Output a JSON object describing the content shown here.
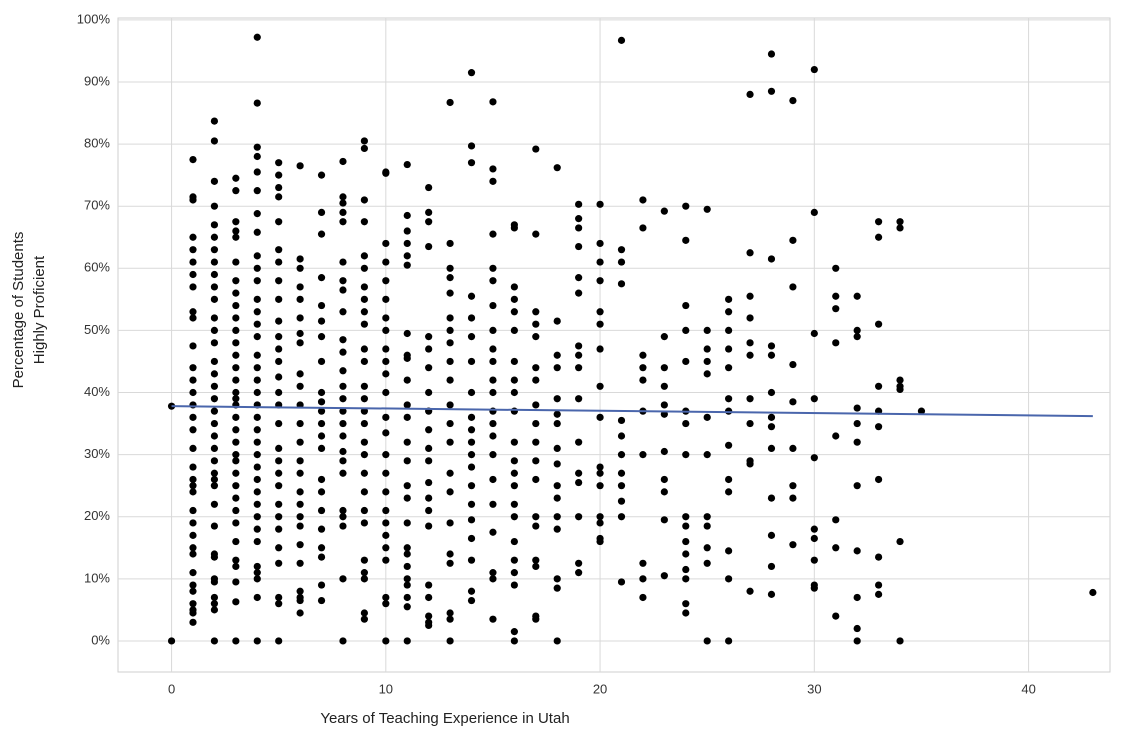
{
  "chart_data": {
    "type": "scatter",
    "x_label": "Years of Teaching Experience in Utah",
    "y_label": [
      "Percentage of Students",
      "Highly Proficient"
    ],
    "color": "#000000",
    "xlim": [
      -2.5,
      43.8
    ],
    "ylim": [
      -5,
      100.3
    ],
    "xticks": [
      0,
      10,
      20,
      30,
      40
    ],
    "yticks": [
      {
        "value": 0,
        "label": "0%"
      },
      {
        "value": 10,
        "label": "10%"
      },
      {
        "value": 20,
        "label": "20%"
      },
      {
        "value": 30,
        "label": "30%"
      },
      {
        "value": 40,
        "label": "40%"
      },
      {
        "value": 50,
        "label": "50%"
      },
      {
        "value": 60,
        "label": "60%"
      },
      {
        "value": 70,
        "label": "70%"
      },
      {
        "value": 80,
        "label": "80%"
      },
      {
        "value": 90,
        "label": "90%"
      },
      {
        "value": 100,
        "label": "100%"
      }
    ],
    "grid": true,
    "trendline": {
      "x": [
        0,
        43
      ],
      "y": [
        37.8,
        36.2
      ],
      "color": "#4a66ac"
    },
    "x": [
      0,
      0,
      1,
      1,
      1,
      1,
      1,
      1,
      1,
      1,
      1,
      1,
      1,
      1,
      1,
      1,
      1,
      1,
      1,
      1,
      1,
      1,
      1,
      1,
      1,
      1,
      1,
      1,
      1,
      1,
      1,
      1,
      1,
      1,
      1,
      1,
      2,
      2,
      2,
      2,
      2,
      2,
      2,
      2,
      2,
      2,
      2,
      2,
      2,
      2,
      2,
      2,
      2,
      2,
      2,
      2,
      2,
      2,
      2,
      2,
      2,
      2,
      2,
      2,
      2,
      2,
      2,
      2,
      2,
      2,
      2,
      2,
      3,
      3,
      3,
      3,
      3,
      3,
      3,
      3,
      3,
      3,
      3,
      3,
      3,
      3,
      3,
      3,
      3,
      3,
      3,
      3,
      3,
      3,
      3,
      3,
      3,
      3,
      3,
      3,
      3,
      3,
      3,
      3,
      3,
      3,
      4,
      4,
      4,
      4,
      4,
      4,
      4,
      4,
      4,
      4,
      4,
      4,
      4,
      4,
      4,
      4,
      4,
      4,
      4,
      4,
      4,
      4,
      4,
      4,
      4,
      4,
      4,
      4,
      4,
      4,
      4,
      4,
      4,
      4,
      4,
      4,
      5,
      5,
      5,
      5,
      5,
      5,
      5,
      5,
      5,
      5,
      5,
      5,
      5,
      5,
      5,
      5,
      5,
      5,
      5,
      5,
      5,
      5,
      5,
      5,
      5,
      5,
      5,
      5,
      5,
      6,
      6,
      6,
      6,
      6,
      6,
      6,
      6,
      6,
      6,
      6,
      6,
      6,
      6,
      6,
      6,
      6,
      6,
      6,
      6,
      6,
      6,
      6,
      6,
      6,
      7,
      7,
      7,
      7,
      7,
      7,
      7,
      7,
      7,
      7,
      7,
      7,
      7,
      7,
      7,
      7,
      7,
      7,
      7,
      7,
      7,
      7,
      8,
      8,
      8,
      8,
      8,
      8,
      8,
      8,
      8,
      8,
      8,
      8,
      8,
      8,
      8,
      8,
      8,
      8,
      8,
      8,
      8,
      8,
      8,
      8,
      8,
      9,
      9,
      9,
      9,
      9,
      9,
      9,
      9,
      9,
      9,
      9,
      9,
      9,
      9,
      9,
      9,
      9,
      9,
      9,
      9,
      9,
      9,
      9,
      9,
      9,
      9,
      9,
      10,
      10,
      10,
      10,
      10,
      10,
      10,
      10,
      10,
      10,
      10,
      10,
      10,
      10,
      10,
      10,
      10,
      10,
      10,
      10,
      10,
      10,
      10,
      10,
      10,
      11,
      11,
      11,
      11,
      11,
      11,
      11,
      11,
      11,
      11,
      11,
      11,
      11,
      11,
      11,
      11,
      11,
      11,
      11,
      11,
      11,
      11,
      11,
      11,
      11,
      12,
      12,
      12,
      12,
      12,
      12,
      12,
      12,
      12,
      12,
      12,
      12,
      12,
      12,
      12,
      12,
      12,
      12,
      12,
      12,
      12,
      13,
      13,
      13,
      13,
      13,
      13,
      13,
      13,
      13,
      13,
      13,
      13,
      13,
      13,
      13,
      13,
      13,
      13,
      13,
      13,
      13,
      14,
      14,
      14,
      14,
      14,
      14,
      14,
      14,
      14,
      14,
      14,
      14,
      14,
      14,
      14,
      14,
      14,
      14,
      14,
      14,
      15,
      15,
      15,
      15,
      15,
      15,
      15,
      15,
      15,
      15,
      15,
      15,
      15,
      15,
      15,
      15,
      15,
      15,
      15,
      15,
      15,
      15,
      16,
      16,
      16,
      16,
      16,
      16,
      16,
      16,
      16,
      16,
      16,
      16,
      16,
      16,
      16,
      16,
      16,
      16,
      16,
      16,
      16,
      16,
      17,
      17,
      17,
      17,
      17,
      17,
      17,
      17,
      17,
      17,
      17,
      17,
      17,
      17,
      17,
      17,
      17,
      17,
      18,
      18,
      18,
      18,
      18,
      18,
      18,
      18,
      18,
      18,
      18,
      18,
      18,
      18,
      18,
      18,
      19,
      19,
      19,
      19,
      19,
      19,
      19,
      19,
      19,
      19,
      19,
      19,
      19,
      19,
      19,
      19,
      20,
      20,
      20,
      20,
      20,
      20,
      20,
      20,
      20,
      20,
      20,
      20,
      20,
      20,
      20,
      20,
      21,
      21,
      21,
      21,
      21,
      21,
      21,
      21,
      21,
      21,
      21,
      21,
      22,
      22,
      22,
      22,
      22,
      22,
      22,
      22,
      22,
      22,
      23,
      23,
      23,
      23,
      23,
      23,
      23,
      23,
      23,
      23,
      23,
      24,
      24,
      24,
      24,
      24,
      24,
      24,
      24,
      24,
      24,
      24,
      24,
      24,
      24,
      24,
      24,
      25,
      25,
      25,
      25,
      25,
      25,
      25,
      25,
      25,
      25,
      25,
      25,
      26,
      26,
      26,
      26,
      26,
      26,
      26,
      26,
      26,
      26,
      26,
      26,
      26,
      27,
      27,
      27,
      27,
      27,
      27,
      27,
      27,
      27,
      27,
      27,
      28,
      28,
      28,
      28,
      28,
      28,
      28,
      28,
      28,
      28,
      28,
      28,
      28,
      29,
      29,
      29,
      29,
      29,
      29,
      29,
      29,
      29,
      30,
      30,
      30,
      30,
      30,
      30,
      30,
      30,
      30,
      30,
      31,
      31,
      31,
      31,
      31,
      31,
      31,
      31,
      32,
      32,
      32,
      32,
      32,
      32,
      32,
      32,
      32,
      32,
      32,
      33,
      33,
      33,
      33,
      33,
      33,
      33,
      33,
      33,
      33,
      34,
      34,
      34,
      34,
      34,
      34,
      34,
      35,
      43
    ],
    "values": [
      0,
      37.8,
      77.5,
      71.5,
      71,
      65,
      63,
      61,
      59,
      57,
      53,
      52,
      47.5,
      44,
      42,
      40,
      38,
      36,
      34,
      31,
      28,
      26,
      25,
      24,
      21,
      19,
      17,
      15,
      14,
      11,
      9,
      8,
      6,
      5,
      4.5,
      3,
      83.7,
      80.5,
      74,
      70,
      67,
      65,
      63,
      61,
      59,
      57,
      55,
      52,
      50,
      48,
      45,
      43,
      41,
      39,
      37,
      35,
      33,
      31,
      29,
      27,
      26,
      25,
      22,
      18.5,
      14,
      13.5,
      10,
      9.5,
      7,
      6,
      5,
      0,
      74.5,
      72.5,
      67.5,
      66,
      65,
      61,
      58,
      56,
      54,
      52,
      50,
      48,
      46,
      44,
      42,
      40,
      39,
      38,
      36,
      34,
      32,
      30,
      29,
      27,
      25,
      23,
      21,
      19,
      16,
      13,
      12,
      9.5,
      6.3,
      0,
      97.2,
      86.6,
      79.5,
      78,
      75.5,
      72.5,
      68.8,
      65.8,
      62,
      60,
      58,
      55,
      53,
      51,
      49,
      46,
      44,
      42,
      40,
      38,
      36,
      34,
      32,
      30,
      28,
      26,
      24,
      22,
      20,
      18,
      16,
      12,
      11,
      10,
      7,
      0,
      77,
      75,
      73,
      71.5,
      67.5,
      63,
      61,
      58,
      55,
      51.5,
      49,
      47,
      45,
      42.5,
      40,
      38,
      35,
      31,
      29,
      27,
      25,
      22,
      20,
      18,
      15,
      12.5,
      7,
      6,
      0,
      76.5,
      61.5,
      60,
      57,
      55,
      52,
      49.5,
      48,
      43,
      41,
      38,
      35,
      32,
      29,
      27,
      24,
      22,
      20,
      18.5,
      15.5,
      12.5,
      8,
      7,
      6.5,
      4.5,
      75,
      69,
      65.5,
      58.5,
      54,
      51.5,
      49,
      45,
      40,
      38.5,
      37,
      35,
      33,
      31,
      26,
      24,
      21,
      18,
      15,
      13.5,
      9,
      6.5,
      77.2,
      71.5,
      70.5,
      69,
      67.5,
      61,
      58,
      56.5,
      53,
      48.5,
      46.5,
      43.5,
      41,
      39,
      37,
      35,
      33,
      30.5,
      29,
      27,
      21,
      20,
      18.5,
      10,
      0,
      80.5,
      79.3,
      71,
      67.5,
      62,
      60,
      57,
      55,
      53,
      51,
      47,
      45,
      41,
      39,
      37,
      35,
      32,
      30,
      27,
      24,
      21,
      19,
      13,
      11,
      10,
      4.5,
      3.5,
      75.5,
      75.3,
      64,
      61,
      58,
      55,
      52,
      50,
      47,
      45,
      43,
      40,
      36,
      33.5,
      30,
      27,
      24,
      21,
      19,
      17,
      15,
      13,
      7,
      6,
      0,
      76.7,
      68.5,
      66,
      64,
      62,
      60.5,
      49.5,
      46,
      45.5,
      42,
      38,
      36,
      32,
      29,
      25,
      23,
      19,
      15,
      14,
      12,
      10,
      9,
      7,
      5.5,
      0,
      73,
      69,
      67.5,
      63.5,
      49,
      47,
      44,
      40,
      37,
      34,
      31,
      29,
      25.5,
      23,
      21,
      18.5,
      9,
      7,
      4,
      3,
      2.5,
      86.7,
      64,
      60,
      58.5,
      56,
      52,
      50,
      48,
      45,
      42,
      38,
      35,
      32,
      27,
      24,
      19,
      14,
      12.5,
      4.5,
      3.5,
      0,
      91.5,
      79.7,
      77,
      55.5,
      52,
      49,
      45,
      40,
      36,
      34,
      32,
      30,
      28,
      25,
      22,
      19.5,
      16.5,
      13,
      8,
      6.5,
      86.8,
      76,
      74,
      65.5,
      60,
      58,
      54,
      50,
      47,
      45,
      42,
      40,
      37,
      35,
      33,
      30,
      26,
      22,
      17.5,
      11,
      10,
      3.5,
      67,
      66.5,
      57,
      55,
      53,
      50,
      45,
      42,
      40,
      37,
      32,
      29,
      27,
      25,
      22,
      20,
      16,
      13,
      11,
      9,
      1.5,
      0,
      79.2,
      65.5,
      53,
      51,
      49,
      44,
      42,
      38,
      35,
      32,
      29,
      26,
      20,
      18.5,
      13,
      12,
      4,
      3.5,
      76.2,
      51.5,
      46,
      44,
      39,
      36.5,
      35,
      31,
      28.5,
      25,
      23,
      20,
      18,
      10,
      8.5,
      0,
      70.3,
      68,
      66.5,
      63.5,
      58.5,
      56,
      47.5,
      46,
      44,
      39,
      32,
      27,
      25.5,
      20,
      12.5,
      11,
      70.3,
      64,
      61,
      58,
      53,
      51,
      47,
      41,
      36,
      28,
      27,
      25,
      20,
      19,
      16.5,
      16,
      96.7,
      63,
      61,
      57.5,
      35.5,
      33,
      30,
      27,
      25,
      22.5,
      20,
      9.5,
      71,
      66.5,
      46,
      44,
      42,
      37,
      30,
      12.5,
      10,
      7,
      69.2,
      49,
      44,
      41,
      38,
      36.5,
      30.5,
      26,
      24,
      19.5,
      10.5,
      70,
      64.5,
      54,
      50,
      45,
      37,
      35,
      30,
      20,
      18.5,
      16,
      14,
      11.5,
      10,
      6,
      4.5,
      69.5,
      50,
      47,
      45,
      43,
      36,
      30,
      20,
      18.5,
      15,
      12.5,
      0,
      55,
      53,
      50,
      47,
      44,
      39,
      37,
      31.5,
      26,
      24,
      14.5,
      10,
      0,
      88,
      62.5,
      55.5,
      52,
      48,
      46,
      39,
      35,
      29,
      28.5,
      8,
      94.5,
      88.5,
      61.5,
      47.5,
      46,
      40,
      36,
      34.5,
      31,
      23,
      17,
      12,
      7.5,
      87,
      64.5,
      57,
      44.5,
      38.5,
      31,
      25,
      23,
      15.5,
      92,
      69,
      49.5,
      39,
      29.5,
      18,
      16.5,
      13,
      9,
      8.5,
      60,
      55.5,
      53.5,
      48,
      33,
      19.5,
      15,
      4,
      55.5,
      50,
      49,
      37.5,
      35,
      32,
      25,
      14.5,
      7,
      2,
      0,
      67.5,
      65,
      51,
      41,
      37,
      34.5,
      26,
      13.5,
      9,
      7.5,
      67.5,
      66.5,
      42,
      41,
      40.5,
      16,
      0,
      37,
      7.8
    ]
  }
}
